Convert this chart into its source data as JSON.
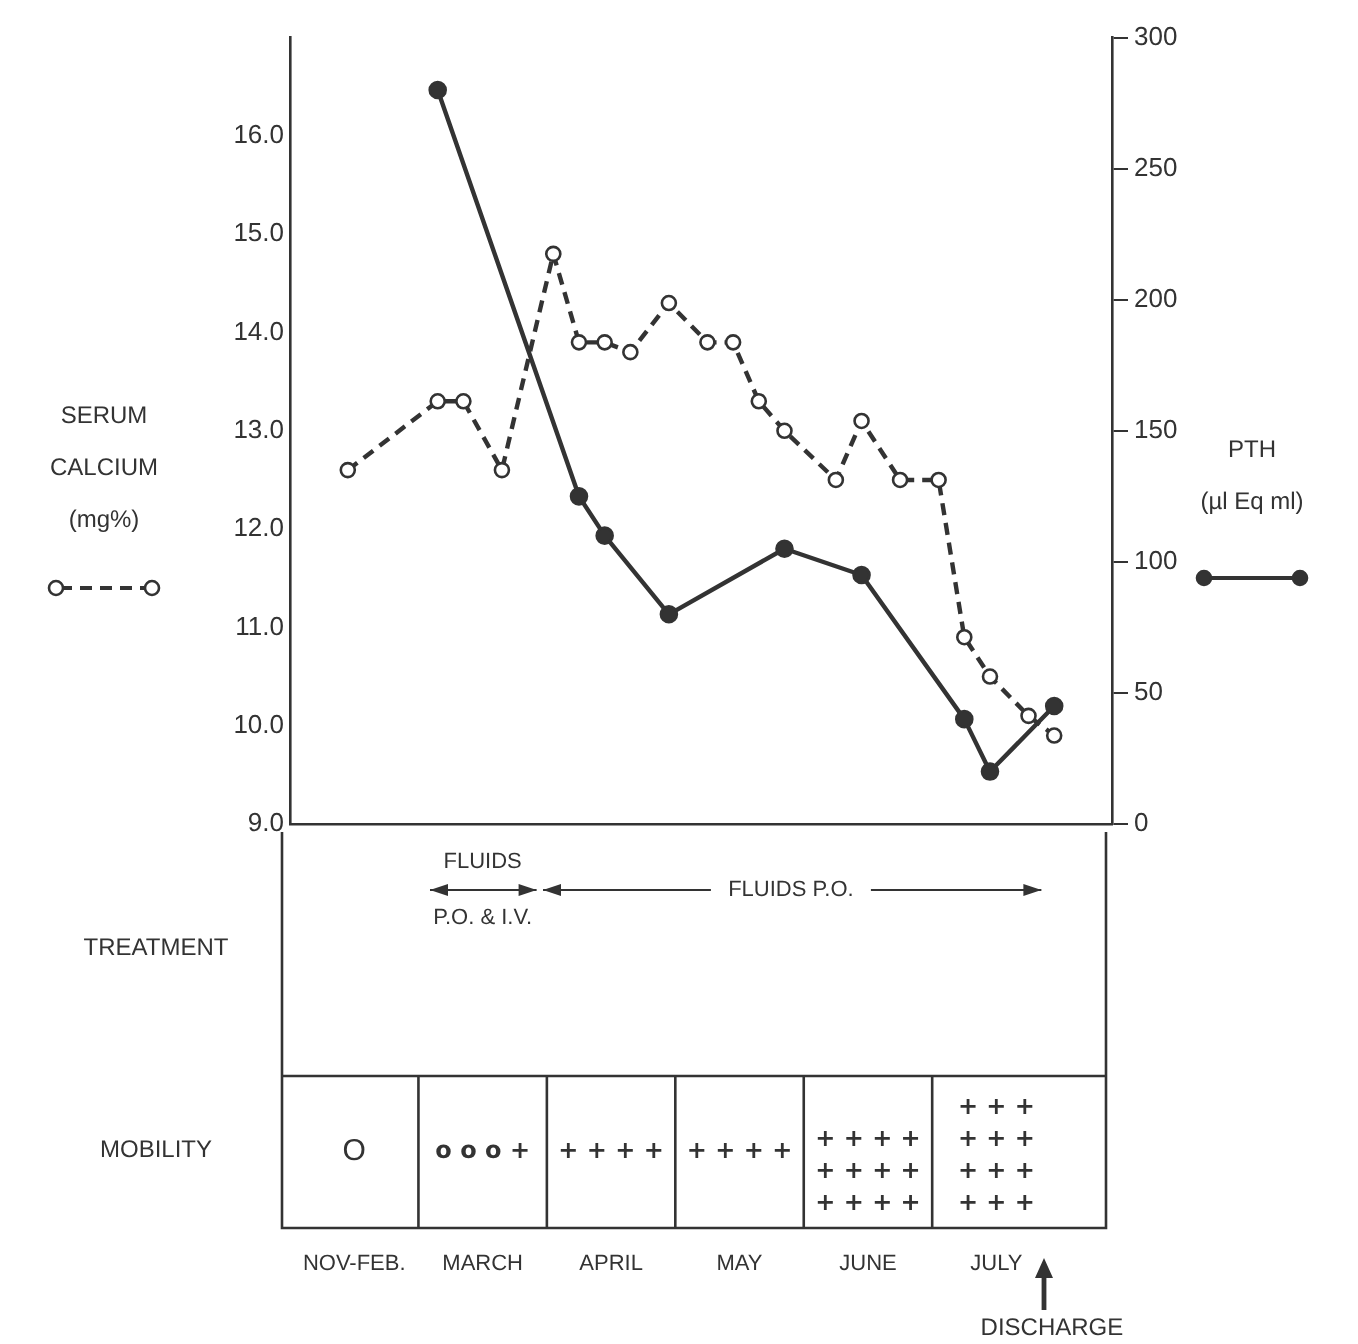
{
  "chart_data": {
    "type": "line",
    "ylabel": "SERUM CALCIUM (mg%)",
    "y2label": "PTH (µl Eq ml)",
    "categories": [
      null,
      null,
      null,
      null,
      null,
      null,
      null,
      null,
      null,
      null,
      null,
      null,
      null,
      null,
      null,
      null,
      null,
      null,
      null,
      null,
      null,
      null,
      null,
      null,
      null,
      null,
      null,
      null,
      null,
      null,
      null,
      null,
      null,
      null,
      null,
      null,
      null,
      null,
      null,
      null,
      null,
      null,
      null,
      null,
      null,
      null,
      null,
      null,
      null,
      null,
      null,
      null,
      null,
      null,
      null,
      null,
      null,
      null,
      null,
      null,
      null,
      null,
      null,
      null
    ],
    "ylim": [
      9,
      17
    ],
    "yticks": [
      {
        "value": 9,
        "label": "9.0"
      },
      {
        "value": 10,
        "label": "10.0"
      },
      {
        "value": 11,
        "label": "11.0"
      },
      {
        "value": 12,
        "label": "12.0"
      },
      {
        "value": 13,
        "label": "13.0"
      },
      {
        "value": 14,
        "label": "14.0"
      },
      {
        "value": 15,
        "label": "15.0"
      },
      {
        "value": 16,
        "label": "16.0"
      }
    ],
    "y2lim": [
      0,
      300
    ],
    "y2ticks": [
      0,
      50,
      100,
      150,
      200,
      250,
      300
    ],
    "series": [
      {
        "color": "#333333",
        "line_style": "dashed",
        "values": [
          null,
          null,
          null,
          null,
          12.6,
          null,
          null,
          null,
          null,
          null,
          null,
          13.3,
          null,
          13.3,
          null,
          null,
          12.6,
          null,
          null,
          null,
          14.8,
          null,
          13.9,
          null,
          13.9,
          null,
          13.8,
          null,
          null,
          14.3,
          null,
          null,
          13.9,
          null,
          13.9,
          null,
          13.3,
          null,
          13.0,
          null,
          null,
          null,
          12.5,
          null,
          13.1,
          null,
          null,
          12.5,
          null,
          null,
          12.5,
          null,
          10.9,
          null,
          10.5,
          null,
          null,
          10.1,
          null,
          9.9,
          null,
          null,
          null,
          null
        ]
      },
      {
        "color": "#333333",
        "line_style": "solid",
        "axis": "y2",
        "values": [
          null,
          null,
          null,
          null,
          null,
          null,
          null,
          null,
          null,
          null,
          null,
          280,
          null,
          null,
          null,
          null,
          null,
          null,
          null,
          null,
          null,
          null,
          125,
          null,
          110,
          null,
          null,
          null,
          null,
          80,
          null,
          null,
          null,
          null,
          null,
          null,
          null,
          null,
          105,
          null,
          null,
          null,
          null,
          null,
          95,
          null,
          null,
          null,
          null,
          null,
          null,
          null,
          40,
          null,
          20,
          null,
          null,
          null,
          null,
          45,
          null,
          null,
          null,
          null
        ]
      }
    ],
    "marker": "circle",
    "grid": false,
    "legend": false,
    "annotations": [
      "TREATMENT",
      "FLUIDS",
      "P.O. & I.V.",
      "FLUIDS P.O.",
      "MOBILITY",
      "O",
      "o o o +",
      "+ + + +",
      "+ + + +",
      "+ + + +\n+ + + +\n+ + + +",
      "+ + +\n+ + +\n+ + +\n+ + +",
      "NOV-FEB.",
      "MARCH",
      "APRIL",
      "MAY",
      "JUNE",
      "JULY",
      "DISCHARGE"
    ]
  }
}
